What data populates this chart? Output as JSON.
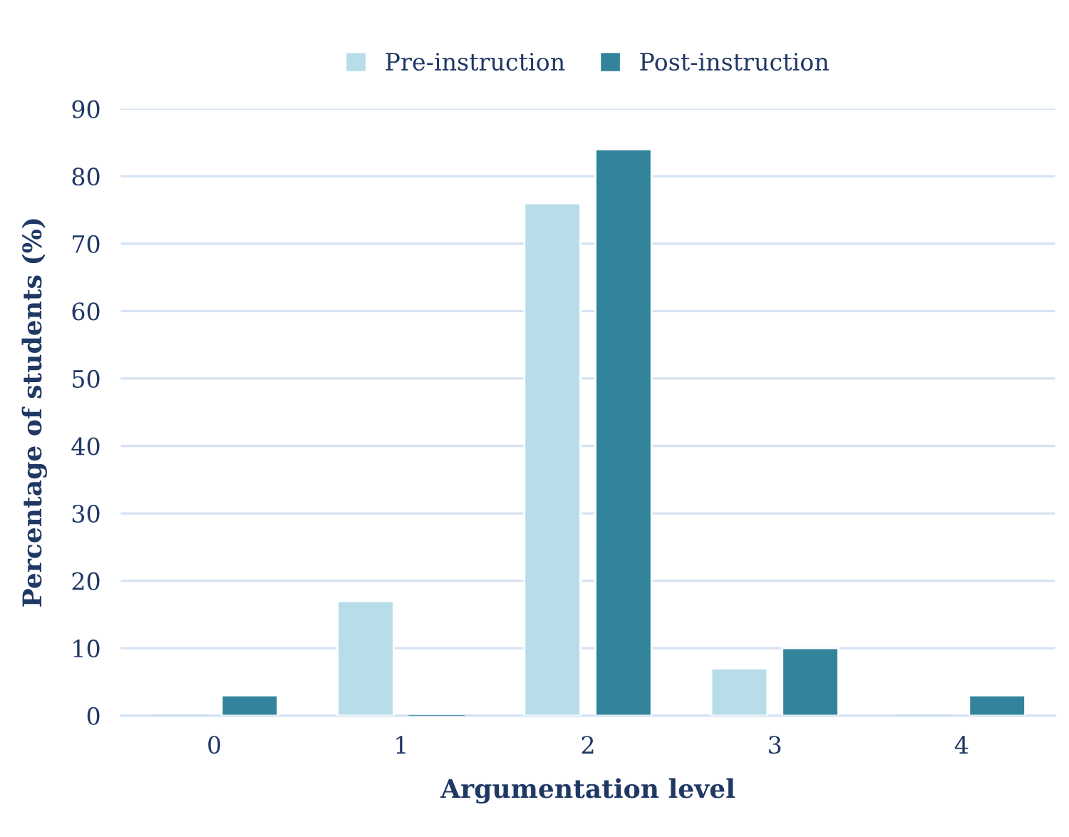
{
  "chart_data": {
    "type": "bar",
    "xlabel": "Argumentation level",
    "ylabel": "Percentage of students (%)",
    "categories": [
      "0",
      "1",
      "2",
      "3",
      "4"
    ],
    "series": [
      {
        "name": "Pre-instruction",
        "color": "#b7dde8",
        "values": [
          0,
          17,
          76,
          7,
          0
        ]
      },
      {
        "name": "Post-instruction",
        "color": "#31849b",
        "values": [
          3,
          0,
          84,
          10,
          3
        ]
      }
    ],
    "ylim": [
      0,
      90
    ],
    "yticks": [
      0,
      10,
      20,
      30,
      40,
      50,
      60,
      70,
      80,
      90
    ],
    "grid": "y",
    "legend": "top"
  }
}
